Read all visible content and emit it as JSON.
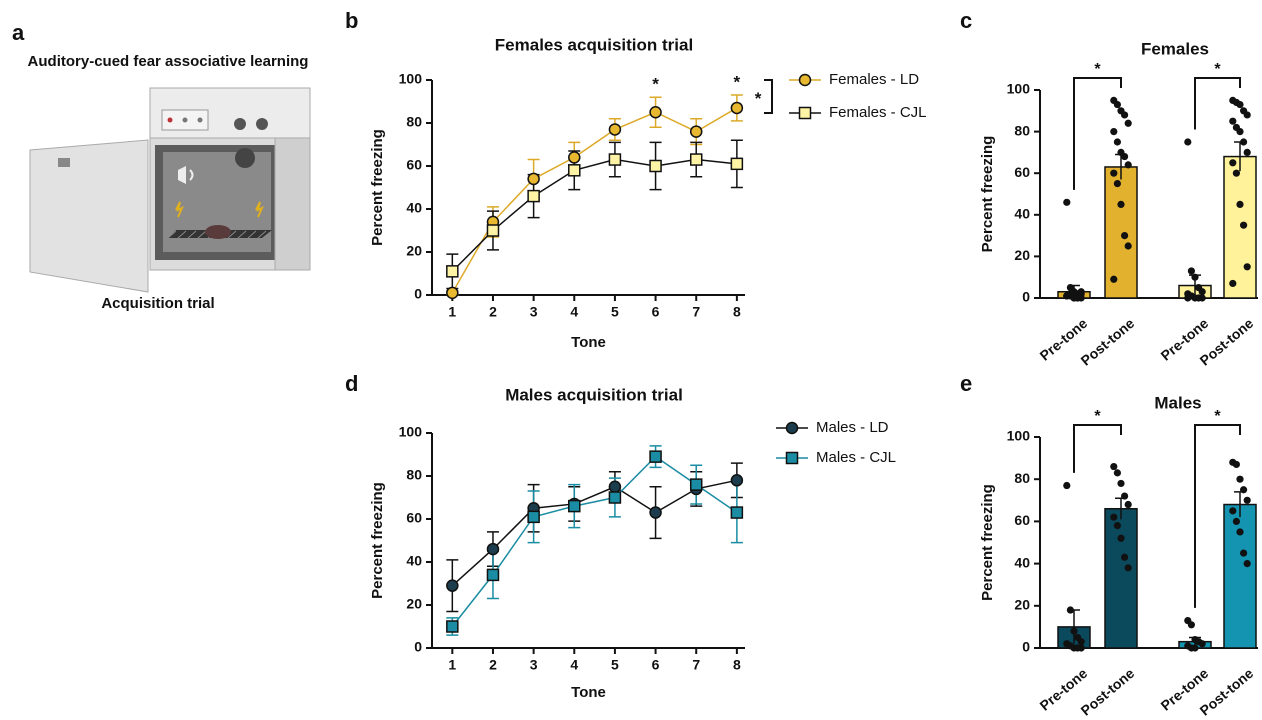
{
  "panel_a": {
    "label": "a",
    "title": "Auditory-cued fear associative learning",
    "caption": "Acquisition trial"
  },
  "chart_data": [
    {
      "type": "line",
      "panel_label": "b",
      "title": "Females acquisition trial",
      "x_label": "Tone",
      "y_label": "Percent freezing",
      "x": [
        1,
        2,
        3,
        4,
        5,
        6,
        7,
        8
      ],
      "xlim": [
        0.5,
        8.2
      ],
      "xticks": [
        1,
        2,
        3,
        4,
        5,
        6,
        7,
        8
      ],
      "ylim": [
        0,
        100
      ],
      "yticks": [
        0,
        20,
        40,
        60,
        80,
        100
      ],
      "series": [
        {
          "name": "Females - LD",
          "color": "#e8b830",
          "line_color": "#dcaa28",
          "marker": "circle",
          "values": [
            1,
            34,
            54,
            64,
            77,
            85,
            76,
            87
          ],
          "errors": [
            1,
            7,
            9,
            7,
            5,
            7,
            6,
            6
          ]
        },
        {
          "name": "Females - CJL",
          "color": "#fff4a6",
          "line_color": "#111111",
          "marker": "square",
          "values": [
            11,
            30,
            46,
            58,
            63,
            60,
            63,
            61
          ],
          "errors": [
            8,
            9,
            10,
            9,
            8,
            11,
            8,
            11
          ]
        }
      ],
      "annotations": [
        {
          "x": 6,
          "text": "*"
        },
        {
          "x": 8,
          "text": "*"
        }
      ],
      "legend_annotation": "*"
    },
    {
      "type": "bar",
      "panel_label": "c",
      "title": "Females",
      "y_label": "Percent freezing",
      "categories": [
        "Pre-tone",
        "Post-tone",
        "Pre-tone",
        "Post-tone"
      ],
      "values": [
        3,
        63,
        6,
        68
      ],
      "errors": [
        3,
        6,
        5,
        7
      ],
      "colors": [
        "#e2b22f",
        "#e2b22f",
        "#fff29a",
        "#fff29a"
      ],
      "points": [
        [
          46,
          5,
          3,
          2,
          2,
          1,
          1,
          0,
          0,
          0,
          1,
          2,
          0,
          0,
          3,
          1
        ],
        [
          95,
          93,
          90,
          88,
          84,
          80,
          75,
          70,
          68,
          64,
          60,
          55,
          45,
          30,
          25,
          9
        ],
        [
          75,
          13,
          10,
          5,
          3,
          2,
          1,
          0,
          0,
          0,
          0
        ],
        [
          95,
          94,
          93,
          90,
          88,
          85,
          82,
          80,
          75,
          70,
          65,
          60,
          45,
          35,
          15,
          7
        ]
      ],
      "ylim": [
        0,
        100
      ],
      "yticks": [
        0,
        20,
        40,
        60,
        80,
        100
      ],
      "annotations": [
        "*",
        "*"
      ]
    },
    {
      "type": "line",
      "panel_label": "d",
      "title": "Males acquisition trial",
      "x_label": "Tone",
      "y_label": "Percent freezing",
      "x": [
        1,
        2,
        3,
        4,
        5,
        6,
        7,
        8
      ],
      "xlim": [
        0.5,
        8.2
      ],
      "xticks": [
        1,
        2,
        3,
        4,
        5,
        6,
        7,
        8
      ],
      "ylim": [
        0,
        100
      ],
      "yticks": [
        0,
        20,
        40,
        60,
        80,
        100
      ],
      "series": [
        {
          "name": "Males - LD",
          "color": "#1c3d4d",
          "line_color": "#111111",
          "marker": "circle",
          "values": [
            29,
            46,
            65,
            67,
            75,
            63,
            74,
            78
          ],
          "errors": [
            12,
            8,
            11,
            8,
            7,
            12,
            8,
            8
          ]
        },
        {
          "name": "Males - CJL",
          "color": "#1a8ca3",
          "line_color": "#1a8ca3",
          "marker": "square",
          "values": [
            10,
            34,
            61,
            66,
            70,
            89,
            76,
            63
          ],
          "errors": [
            4,
            11,
            12,
            10,
            9,
            5,
            9,
            14
          ]
        }
      ]
    },
    {
      "type": "bar",
      "panel_label": "e",
      "title": "Males",
      "y_label": "Percent freezing",
      "categories": [
        "Pre-tone",
        "Post-tone",
        "Pre-tone",
        "Post-tone"
      ],
      "values": [
        10,
        66,
        3,
        68
      ],
      "errors": [
        8,
        5,
        2,
        6
      ],
      "colors": [
        "#0b4a5c",
        "#0b4a5c",
        "#1494b0",
        "#1494b0"
      ],
      "points": [
        [
          77,
          18,
          8,
          5,
          3,
          2,
          1,
          0,
          0,
          0
        ],
        [
          86,
          83,
          78,
          72,
          68,
          62,
          58,
          52,
          43,
          38
        ],
        [
          13,
          11,
          4,
          3,
          2,
          1,
          0,
          0
        ],
        [
          88,
          87,
          80,
          75,
          70,
          65,
          60,
          55,
          45,
          40
        ]
      ],
      "ylim": [
        0,
        100
      ],
      "yticks": [
        0,
        20,
        40,
        60,
        80,
        100
      ],
      "annotations": [
        "*",
        "*"
      ]
    }
  ]
}
